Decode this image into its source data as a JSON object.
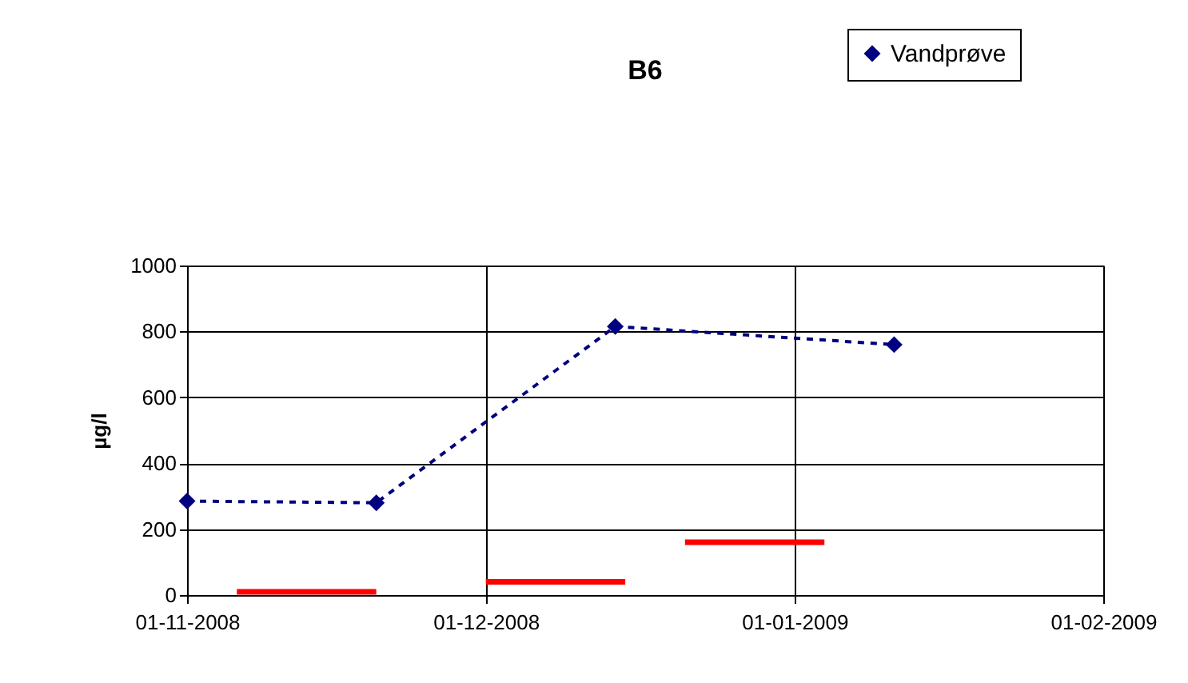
{
  "chart_data": {
    "type": "line",
    "title": "B6",
    "ylabel": "µg/l",
    "xlim": [
      "2008-11-01",
      "2009-02-01"
    ],
    "xticks": [
      {
        "value": "2008-11-01",
        "label": "01-11-2008"
      },
      {
        "value": "2008-12-01",
        "label": "01-12-2008"
      },
      {
        "value": "2009-01-01",
        "label": "01-01-2009"
      },
      {
        "value": "2009-02-01",
        "label": "01-02-2009"
      }
    ],
    "ylim": [
      0,
      1000
    ],
    "yticks": [
      0,
      200,
      400,
      600,
      800,
      1000
    ],
    "grid": true,
    "legend": "top right",
    "series": [
      {
        "name": "Vandprøve",
        "color": "#000080",
        "line_style": "dashed",
        "marker": "diamond",
        "x": [
          "2008-11-01",
          "2008-11-20",
          "2008-12-14",
          "2009-01-11"
        ],
        "values": [
          285,
          280,
          815,
          760
        ]
      },
      {
        "color": "#ff0000",
        "line_style": "solid",
        "marker": "none",
        "x": [
          "2008-11-06",
          "2008-11-20"
        ],
        "values": [
          10,
          10
        ]
      },
      {
        "color": "#ff0000",
        "line_style": "solid",
        "marker": "none",
        "x": [
          "2008-12-01",
          "2008-12-15"
        ],
        "values": [
          40,
          40
        ]
      },
      {
        "color": "#ff0000",
        "line_style": "solid",
        "marker": "none",
        "x": [
          "2008-12-21",
          "2009-01-04"
        ],
        "values": [
          160,
          160
        ]
      }
    ]
  }
}
